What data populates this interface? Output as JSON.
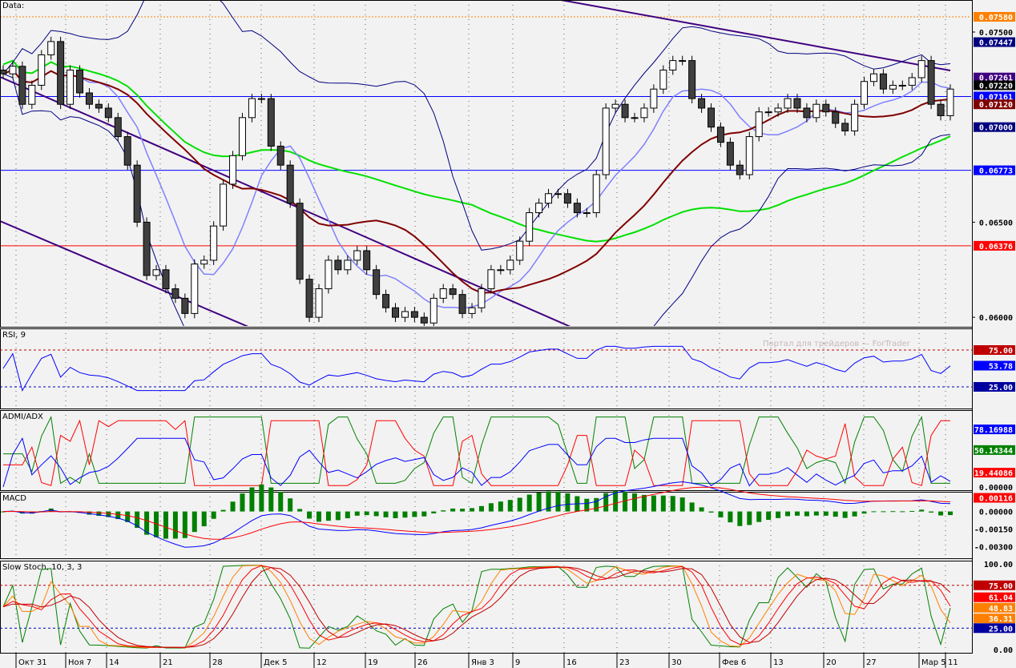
{
  "chart_data": {
    "type": "candlestick",
    "instrument_label": "Data:",
    "watermark": "Портал для трейдеров — ForTrader",
    "x_labels": [
      "Окт 31",
      "Ноя 7",
      "14",
      "21",
      "28",
      "Дек 5",
      "12",
      "19",
      "26",
      "Янв 3",
      "9",
      "16",
      "23",
      "30",
      "Фев 6",
      "13",
      "20",
      "27",
      "Мар 5",
      "11"
    ],
    "closes": [
      0.0728,
      0.0732,
      0.0712,
      0.0722,
      0.0738,
      0.0745,
      0.0712,
      0.073,
      0.0718,
      0.0712,
      0.071,
      0.0705,
      0.0695,
      0.068,
      0.065,
      0.0622,
      0.0625,
      0.0615,
      0.061,
      0.0602,
      0.0628,
      0.063,
      0.0648,
      0.067,
      0.0685,
      0.0705,
      0.0715,
      0.0715,
      0.069,
      0.068,
      0.066,
      0.062,
      0.06,
      0.0615,
      0.063,
      0.0625,
      0.063,
      0.0635,
      0.0625,
      0.0612,
      0.0605,
      0.06,
      0.0603,
      0.06,
      0.0597,
      0.061,
      0.0615,
      0.0612,
      0.0602,
      0.0605,
      0.0615,
      0.0625,
      0.0625,
      0.063,
      0.064,
      0.0655,
      0.066,
      0.0665,
      0.0665,
      0.066,
      0.0655,
      0.0655,
      0.0675,
      0.071,
      0.0712,
      0.0705,
      0.0705,
      0.071,
      0.072,
      0.073,
      0.0735,
      0.0735,
      0.0715,
      0.071,
      0.07,
      0.0692,
      0.068,
      0.0675,
      0.0695,
      0.0708,
      0.0708,
      0.071,
      0.0715,
      0.071,
      0.0705,
      0.0712,
      0.0708,
      0.0702,
      0.0698,
      0.0712,
      0.0724,
      0.0728,
      0.072,
      0.0722,
      0.0722,
      0.0726,
      0.0735,
      0.0712,
      0.0706,
      0.072
    ],
    "price_axis": {
      "ticks": [
        "0.07500",
        "0.06500",
        "0.06000"
      ],
      "range": [
        0.0595,
        0.0766
      ]
    },
    "price_levels": [
      {
        "label": "0.07580",
        "value": 0.0758,
        "color": "#ff8000"
      },
      {
        "label": "0.07447",
        "value": 0.07447,
        "color": "#000080"
      },
      {
        "label": "0.07261",
        "value": 0.07261,
        "color": "#400080"
      },
      {
        "label": "0.07220",
        "value": 0.0722,
        "color": "#000000"
      },
      {
        "label": "0.07161",
        "value": 0.07161,
        "color": "#0000ff"
      },
      {
        "label": "0.07120",
        "value": 0.0712,
        "color": "#800000"
      },
      {
        "label": "0.07000",
        "value": 0.07,
        "color": "#000080"
      },
      {
        "label": "0.06773",
        "value": 0.06773,
        "color": "#0000ff"
      },
      {
        "label": "0.06376",
        "value": 0.06376,
        "color": "#ff0000"
      }
    ],
    "hlines": [
      {
        "value": 0.0758,
        "color": "#ff8000"
      },
      {
        "value": 0.07161,
        "color": "#0000ff"
      },
      {
        "value": 0.06773,
        "color": "#0000ff"
      },
      {
        "value": 0.06376,
        "color": "#ff0000"
      }
    ],
    "panels": {
      "rsi": {
        "title": "RSI, 9",
        "labels": [
          {
            "t": "75.00",
            "v": 75,
            "c": "#c00000"
          },
          {
            "t": "53.78",
            "v": 53.78,
            "c": "#0000ff"
          },
          {
            "t": "25.00",
            "v": 25,
            "c": "#0000a0"
          }
        ],
        "range": [
          0,
          100
        ]
      },
      "dmi": {
        "title": "ADMI/ADX",
        "labels": [
          {
            "t": "78.16988",
            "v": 78.17,
            "c": "#0000ff"
          },
          {
            "t": "50.14344",
            "v": 50.14,
            "c": "#008000"
          },
          {
            "t": "19.44086",
            "v": 19.44,
            "c": "#ff0000"
          },
          {
            "t": "0.00000",
            "v": 0,
            "c": ""
          }
        ],
        "range": [
          0,
          100
        ]
      },
      "macd": {
        "title": "MACD",
        "labels": [
          {
            "t": "0.00116",
            "v": 0.00116,
            "c": "#ff0000"
          },
          {
            "t": "0.00000",
            "v": 0,
            "c": ""
          },
          {
            "t": "-0.00150",
            "v": -0.0015,
            "c": ""
          },
          {
            "t": "-0.00300",
            "v": -0.003,
            "c": ""
          }
        ],
        "range": [
          -0.0037,
          0.0014
        ]
      },
      "stoch": {
        "title": "Slow Stoch, 10, 3, 3",
        "labels": [
          {
            "t": "100.00",
            "v": 100,
            "c": ""
          },
          {
            "t": "75.00",
            "v": 75,
            "c": "#c00000"
          },
          {
            "t": "61.04",
            "v": 61.04,
            "c": "#ff0000"
          },
          {
            "t": "48.83",
            "v": 48.83,
            "c": "#ff8000"
          },
          {
            "t": "36.31",
            "v": 36.31,
            "c": "#ff8000"
          },
          {
            "t": "25.00",
            "v": 25,
            "c": "#0000a0"
          },
          {
            "t": "0.00",
            "v": 0,
            "c": ""
          }
        ],
        "range": [
          0,
          100
        ]
      }
    }
  }
}
